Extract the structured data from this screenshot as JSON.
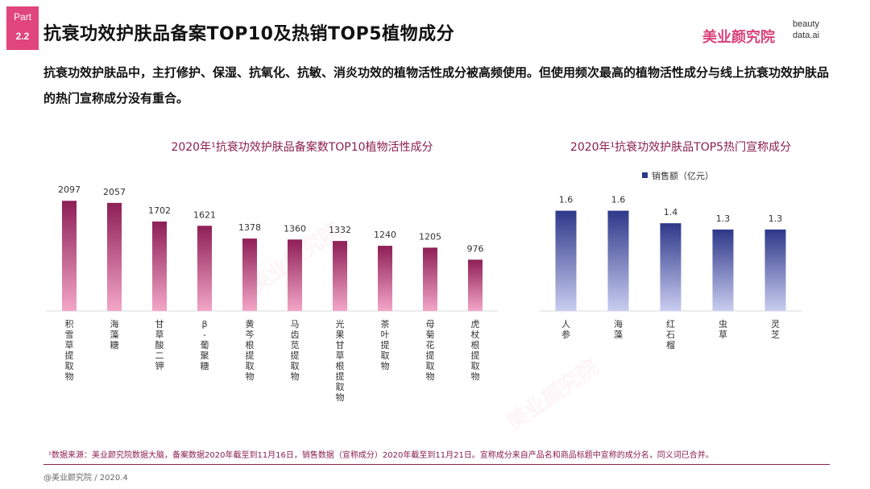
{
  "part": {
    "label": "Part",
    "number": "2.2"
  },
  "title": "抗衰功效护肤品备案TOP10及热销TOP5植物成分",
  "logo": {
    "cn": "美业颜究院",
    "en_line1": "beauty",
    "en_line2": "data.ai"
  },
  "lead_text": "抗衰功效护肤品中，主打修护、保湿、抗氧化、抗敏、消炎功效的植物活性成分被高频使用。但使用频次最高的植物活性成分与线上抗衰功效护肤品的热门宣称成分没有重合。",
  "footnote": "¹数据来源：美业颜究院数据大脑，备案数据2020年截至到11月16日，销售数据（宣称成分）2020年截至到11月21日。宣称成分来自产品名和商品标题中宣称的成分名，同义词已合并。",
  "credit": "@美业颜究院 / 2020.4",
  "colors": {
    "brand": "#e0457b",
    "bar_left_top": "#8e1f56",
    "bar_left_bottom": "#f3a6c8",
    "bar_right_top": "#2e3889",
    "bar_right_bottom": "#c9cdf0",
    "title_color": "#8a1f4e"
  },
  "chart_data": [
    {
      "type": "bar",
      "title": "2020年¹抗衰功效护肤品备案数TOP10植物活性成分",
      "categories": [
        "积雪草提取物",
        "海藻糖",
        "甘草酸二钾",
        "β-葡聚糖",
        "黄芩根提取物",
        "马齿苋提取物",
        "光果甘草根提取物",
        "茶叶提取物",
        "母菊花提取物",
        "虎杖根提取物"
      ],
      "values": [
        2097,
        2057,
        1702,
        1621,
        1378,
        1360,
        1332,
        1240,
        1205,
        976
      ],
      "xlabel": "",
      "ylabel": "",
      "ylim": [
        0,
        2300
      ],
      "legend": null,
      "grid": false
    },
    {
      "type": "bar",
      "title": "2020年¹抗衰功效护肤品TOP5热门宣称成分",
      "categories": [
        "人参",
        "海藻",
        "红石榴",
        "虫草",
        "灵芝"
      ],
      "values": [
        1.6,
        1.6,
        1.4,
        1.3,
        1.3
      ],
      "series_name": "销售额（亿元）",
      "xlabel": "",
      "ylabel": "",
      "ylim": [
        0,
        1.8
      ],
      "legend": "top-center",
      "grid": false
    }
  ]
}
